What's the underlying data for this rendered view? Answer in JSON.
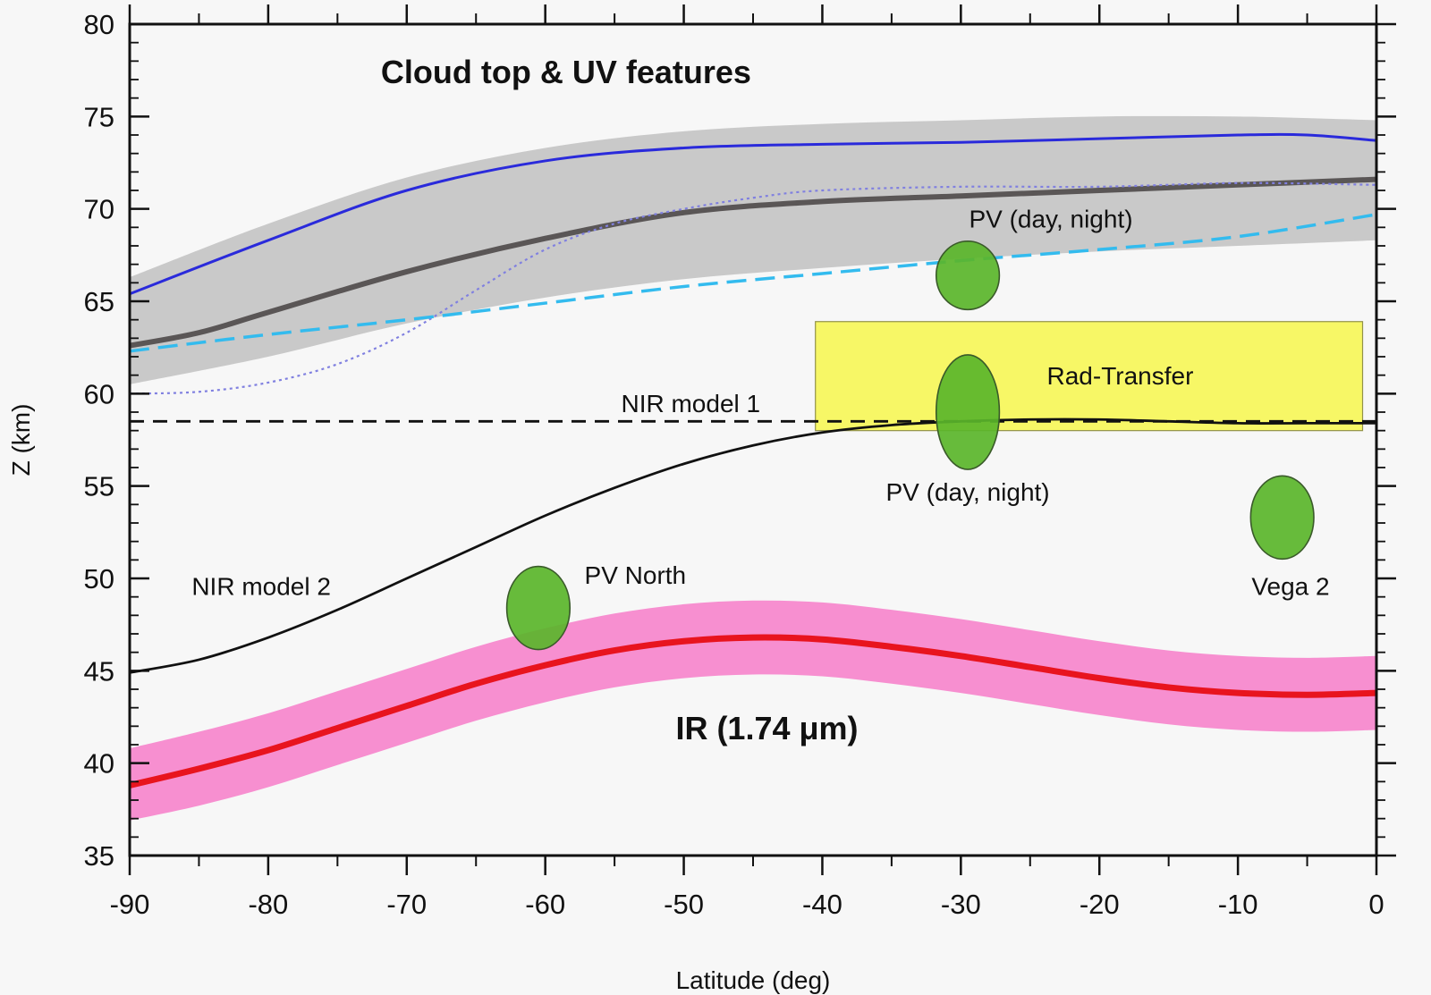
{
  "chart_data": {
    "type": "line",
    "title": "",
    "xlabel": "Latitude (deg)",
    "ylabel": "Z (km)",
    "xlim": [
      -90,
      0
    ],
    "ylim": [
      35,
      80
    ],
    "xticks": [
      -90,
      -80,
      -70,
      -60,
      -50,
      -40,
      -30,
      -20,
      -10,
      0
    ],
    "yticks": [
      35,
      40,
      45,
      50,
      55,
      60,
      65,
      70,
      75,
      80
    ],
    "grid": false,
    "bands": [
      {
        "name": "Cloud top & UV features band",
        "color": "#c9c9c9",
        "x": [
          -90,
          -80,
          -70,
          -60,
          -50,
          -40,
          -30,
          -20,
          -10,
          0
        ],
        "lower": [
          60.5,
          62.0,
          63.8,
          65.2,
          66.2,
          66.8,
          67.3,
          67.7,
          68.0,
          68.3
        ],
        "upper": [
          66.3,
          69.2,
          71.7,
          73.3,
          74.2,
          74.6,
          74.8,
          75.0,
          75.0,
          74.8
        ]
      },
      {
        "name": "IR (1.74 μm) band",
        "color": "#f78fd0",
        "x": [
          -90,
          -85,
          -80,
          -75,
          -70,
          -65,
          -60,
          -55,
          -50,
          -45,
          -40,
          -35,
          -30,
          -25,
          -20,
          -15,
          -10,
          -5,
          0
        ],
        "lower": [
          36.9,
          37.7,
          38.7,
          39.9,
          41.1,
          42.3,
          43.3,
          44.1,
          44.6,
          44.8,
          44.7,
          44.3,
          43.8,
          43.2,
          42.6,
          42.1,
          41.8,
          41.7,
          41.8
        ],
        "upper": [
          40.8,
          41.7,
          42.7,
          43.9,
          45.1,
          46.3,
          47.3,
          48.1,
          48.6,
          48.8,
          48.7,
          48.3,
          47.8,
          47.2,
          46.6,
          46.1,
          45.8,
          45.7,
          45.8
        ]
      }
    ],
    "series": [
      {
        "name": "cloud top (blue)",
        "color": "#2a2adb",
        "style": "solid",
        "x": [
          -90,
          -80,
          -70,
          -60,
          -50,
          -40,
          -30,
          -20,
          -10,
          -5,
          0
        ],
        "y": [
          65.4,
          68.3,
          71.0,
          72.6,
          73.3,
          73.5,
          73.6,
          73.8,
          74.0,
          74.0,
          73.7
        ]
      },
      {
        "name": "cloud top (dark grey)",
        "color": "#5a5656",
        "style": "solid",
        "x": [
          -90,
          -85,
          -80,
          -70,
          -60,
          -50,
          -40,
          -30,
          -20,
          -10,
          0
        ],
        "y": [
          62.6,
          63.3,
          64.4,
          66.6,
          68.4,
          69.8,
          70.4,
          70.7,
          71.0,
          71.3,
          71.6
        ]
      },
      {
        "name": "cloud top (dotted)",
        "color": "#8080e0",
        "style": "dotted",
        "x": [
          -90,
          -85,
          -80,
          -75,
          -70,
          -65,
          -60,
          -55,
          -50,
          -45,
          -40,
          -30,
          -20,
          -10,
          0
        ],
        "y": [
          60.0,
          60.1,
          60.6,
          61.6,
          63.3,
          65.6,
          67.8,
          69.2,
          70.0,
          70.6,
          71.0,
          71.2,
          71.2,
          71.4,
          71.3
        ]
      },
      {
        "name": "cloud top (cyan dashed)",
        "color": "#33bbee",
        "style": "dashed",
        "x": [
          -90,
          -80,
          -70,
          -60,
          -50,
          -40,
          -30,
          -20,
          -10,
          0
        ],
        "y": [
          62.3,
          63.2,
          64.0,
          64.9,
          65.8,
          66.5,
          67.2,
          67.8,
          68.5,
          69.7
        ]
      },
      {
        "name": "NIR model 1",
        "color": "#111111",
        "style": "dashed",
        "x": [
          -90,
          0
        ],
        "y": [
          58.5,
          58.5
        ]
      },
      {
        "name": "NIR model 2",
        "color": "#111111",
        "style": "solid",
        "x": [
          -90,
          -85,
          -80,
          -75,
          -70,
          -65,
          -60,
          -55,
          -50,
          -45,
          -40,
          -35,
          -30,
          -25,
          -20,
          -15,
          -10,
          -5,
          0
        ],
        "y": [
          44.9,
          45.6,
          46.8,
          48.3,
          50.0,
          51.7,
          53.4,
          54.9,
          56.2,
          57.2,
          57.9,
          58.3,
          58.5,
          58.6,
          58.6,
          58.5,
          58.4,
          58.4,
          58.4
        ]
      },
      {
        "name": "IR (1.74 μm)",
        "color": "#e8141e",
        "style": "solid",
        "x": [
          -90,
          -85,
          -80,
          -75,
          -70,
          -65,
          -60,
          -55,
          -50,
          -45,
          -40,
          -35,
          -30,
          -25,
          -20,
          -15,
          -10,
          -5,
          0
        ],
        "y": [
          38.8,
          39.7,
          40.7,
          41.9,
          43.1,
          44.3,
          45.3,
          46.1,
          46.6,
          46.8,
          46.7,
          46.3,
          45.8,
          45.2,
          44.6,
          44.1,
          43.8,
          43.7,
          43.8
        ]
      }
    ],
    "regions": [
      {
        "label": "Rad-Transfer",
        "color": "#f7f75a",
        "x": [
          -40.5,
          -1
        ],
        "y": [
          58.0,
          63.9
        ]
      }
    ],
    "markers": [
      {
        "label": "PV (day, night)",
        "x": -29.5,
        "y": 66.4,
        "rx": 3.0,
        "ry": 1.85,
        "color": "#5ab52a"
      },
      {
        "label": "PV (day, night)",
        "x": -29.5,
        "y": 59.0,
        "rx": 3.0,
        "ry": 3.1,
        "color": "#5ab52a"
      },
      {
        "label": "PV North",
        "x": -60.5,
        "y": 48.4,
        "rx": 3.0,
        "ry": 2.25,
        "color": "#5ab52a"
      },
      {
        "label": "Vega 2",
        "x": -6.8,
        "y": 53.3,
        "rx": 3.0,
        "ry": 2.25,
        "color": "#5ab52a"
      }
    ],
    "annotations": [
      {
        "text": "Cloud top & UV features",
        "x": -58.5,
        "y": 76.8,
        "bold": true
      },
      {
        "text": "NIR model 1",
        "x": -49.5,
        "y": 59.0,
        "bold": false
      },
      {
        "text": "PV (day, night)",
        "x": -23.5,
        "y": 69.0,
        "bold": false
      },
      {
        "text": "Rad-Transfer",
        "x": -18.5,
        "y": 60.5,
        "bold": false
      },
      {
        "text": "PV (day, night)",
        "x": -29.5,
        "y": 54.2,
        "bold": false
      },
      {
        "text": "PV North",
        "x": -53.5,
        "y": 49.7,
        "bold": false
      },
      {
        "text": "NIR model 2",
        "x": -80.5,
        "y": 49.1,
        "bold": false
      },
      {
        "text": "Vega 2",
        "x": -6.2,
        "y": 49.1,
        "bold": false
      },
      {
        "text": "IR (1.74 μm)",
        "x": -44.0,
        "y": 41.3,
        "bold": true
      }
    ]
  }
}
